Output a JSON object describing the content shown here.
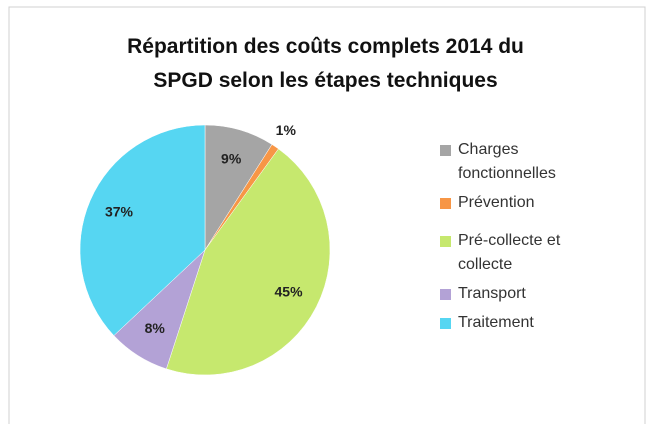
{
  "chart_data": {
    "type": "pie",
    "title": "Répartition des coûts complets 2014 du SPGD selon les étapes techniques",
    "categories": [
      "Charges fonctionnelles",
      "Prévention",
      "Pré-collecte et collecte",
      "Transport",
      "Traitement"
    ],
    "values": [
      9,
      1,
      45,
      8,
      37
    ],
    "value_labels": [
      "9%",
      "1%",
      "45%",
      "8%",
      "37%"
    ],
    "colors": [
      "#a5a5a5",
      "#f79646",
      "#c6e86e",
      "#b3a2d6",
      "#56d6f2"
    ],
    "legend": "right"
  }
}
